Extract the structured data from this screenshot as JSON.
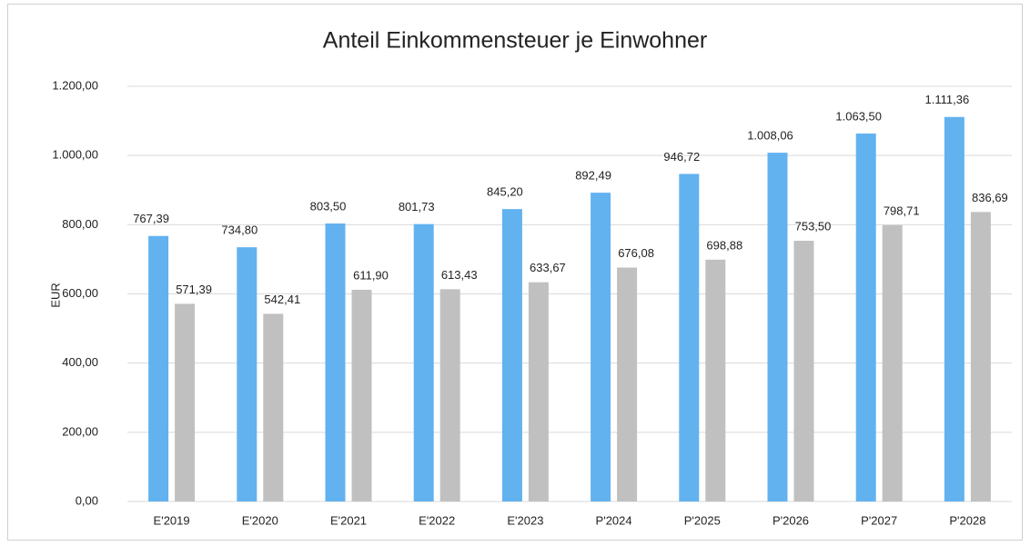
{
  "chart_data": {
    "type": "bar",
    "title": "Anteil Einkommensteuer je Einwohner",
    "y_label": "EUR",
    "categories": [
      "E'2019",
      "E'2020",
      "E'2021",
      "E'2022",
      "E'2023",
      "P'2024",
      "P'2025",
      "P'2026",
      "P'2027",
      "P'2028"
    ],
    "series": [
      {
        "color": "#62b2f0",
        "values": [
          767.39,
          734.8,
          803.5,
          801.73,
          845.2,
          892.49,
          946.72,
          1008.06,
          1063.5,
          1111.36
        ],
        "value_labels": [
          "767,39",
          "734,80",
          "803,50",
          "801,73",
          "845,20",
          "892,49",
          "946,72",
          "1.008,06",
          "1.063,50",
          "1.111,36"
        ]
      },
      {
        "color": "#c0c0c0",
        "values": [
          571.39,
          542.41,
          611.9,
          613.43,
          633.67,
          676.08,
          698.88,
          753.5,
          798.71,
          836.69
        ],
        "value_labels": [
          "571,39",
          "542,41",
          "611,90",
          "613,43",
          "633,67",
          "676,08",
          "698,88",
          "753,50",
          "798,71",
          "836,69"
        ]
      }
    ],
    "ylim": [
      0,
      1200
    ],
    "yticks": [
      {
        "value": 0,
        "label": "0,00"
      },
      {
        "value": 200,
        "label": "200,00"
      },
      {
        "value": 400,
        "label": "400,00"
      },
      {
        "value": 600,
        "label": "600,00"
      },
      {
        "value": 800,
        "label": "800,00"
      },
      {
        "value": 1000,
        "label": "1.000,00"
      },
      {
        "value": 1200,
        "label": "1.200,00"
      }
    ],
    "grid": true
  }
}
